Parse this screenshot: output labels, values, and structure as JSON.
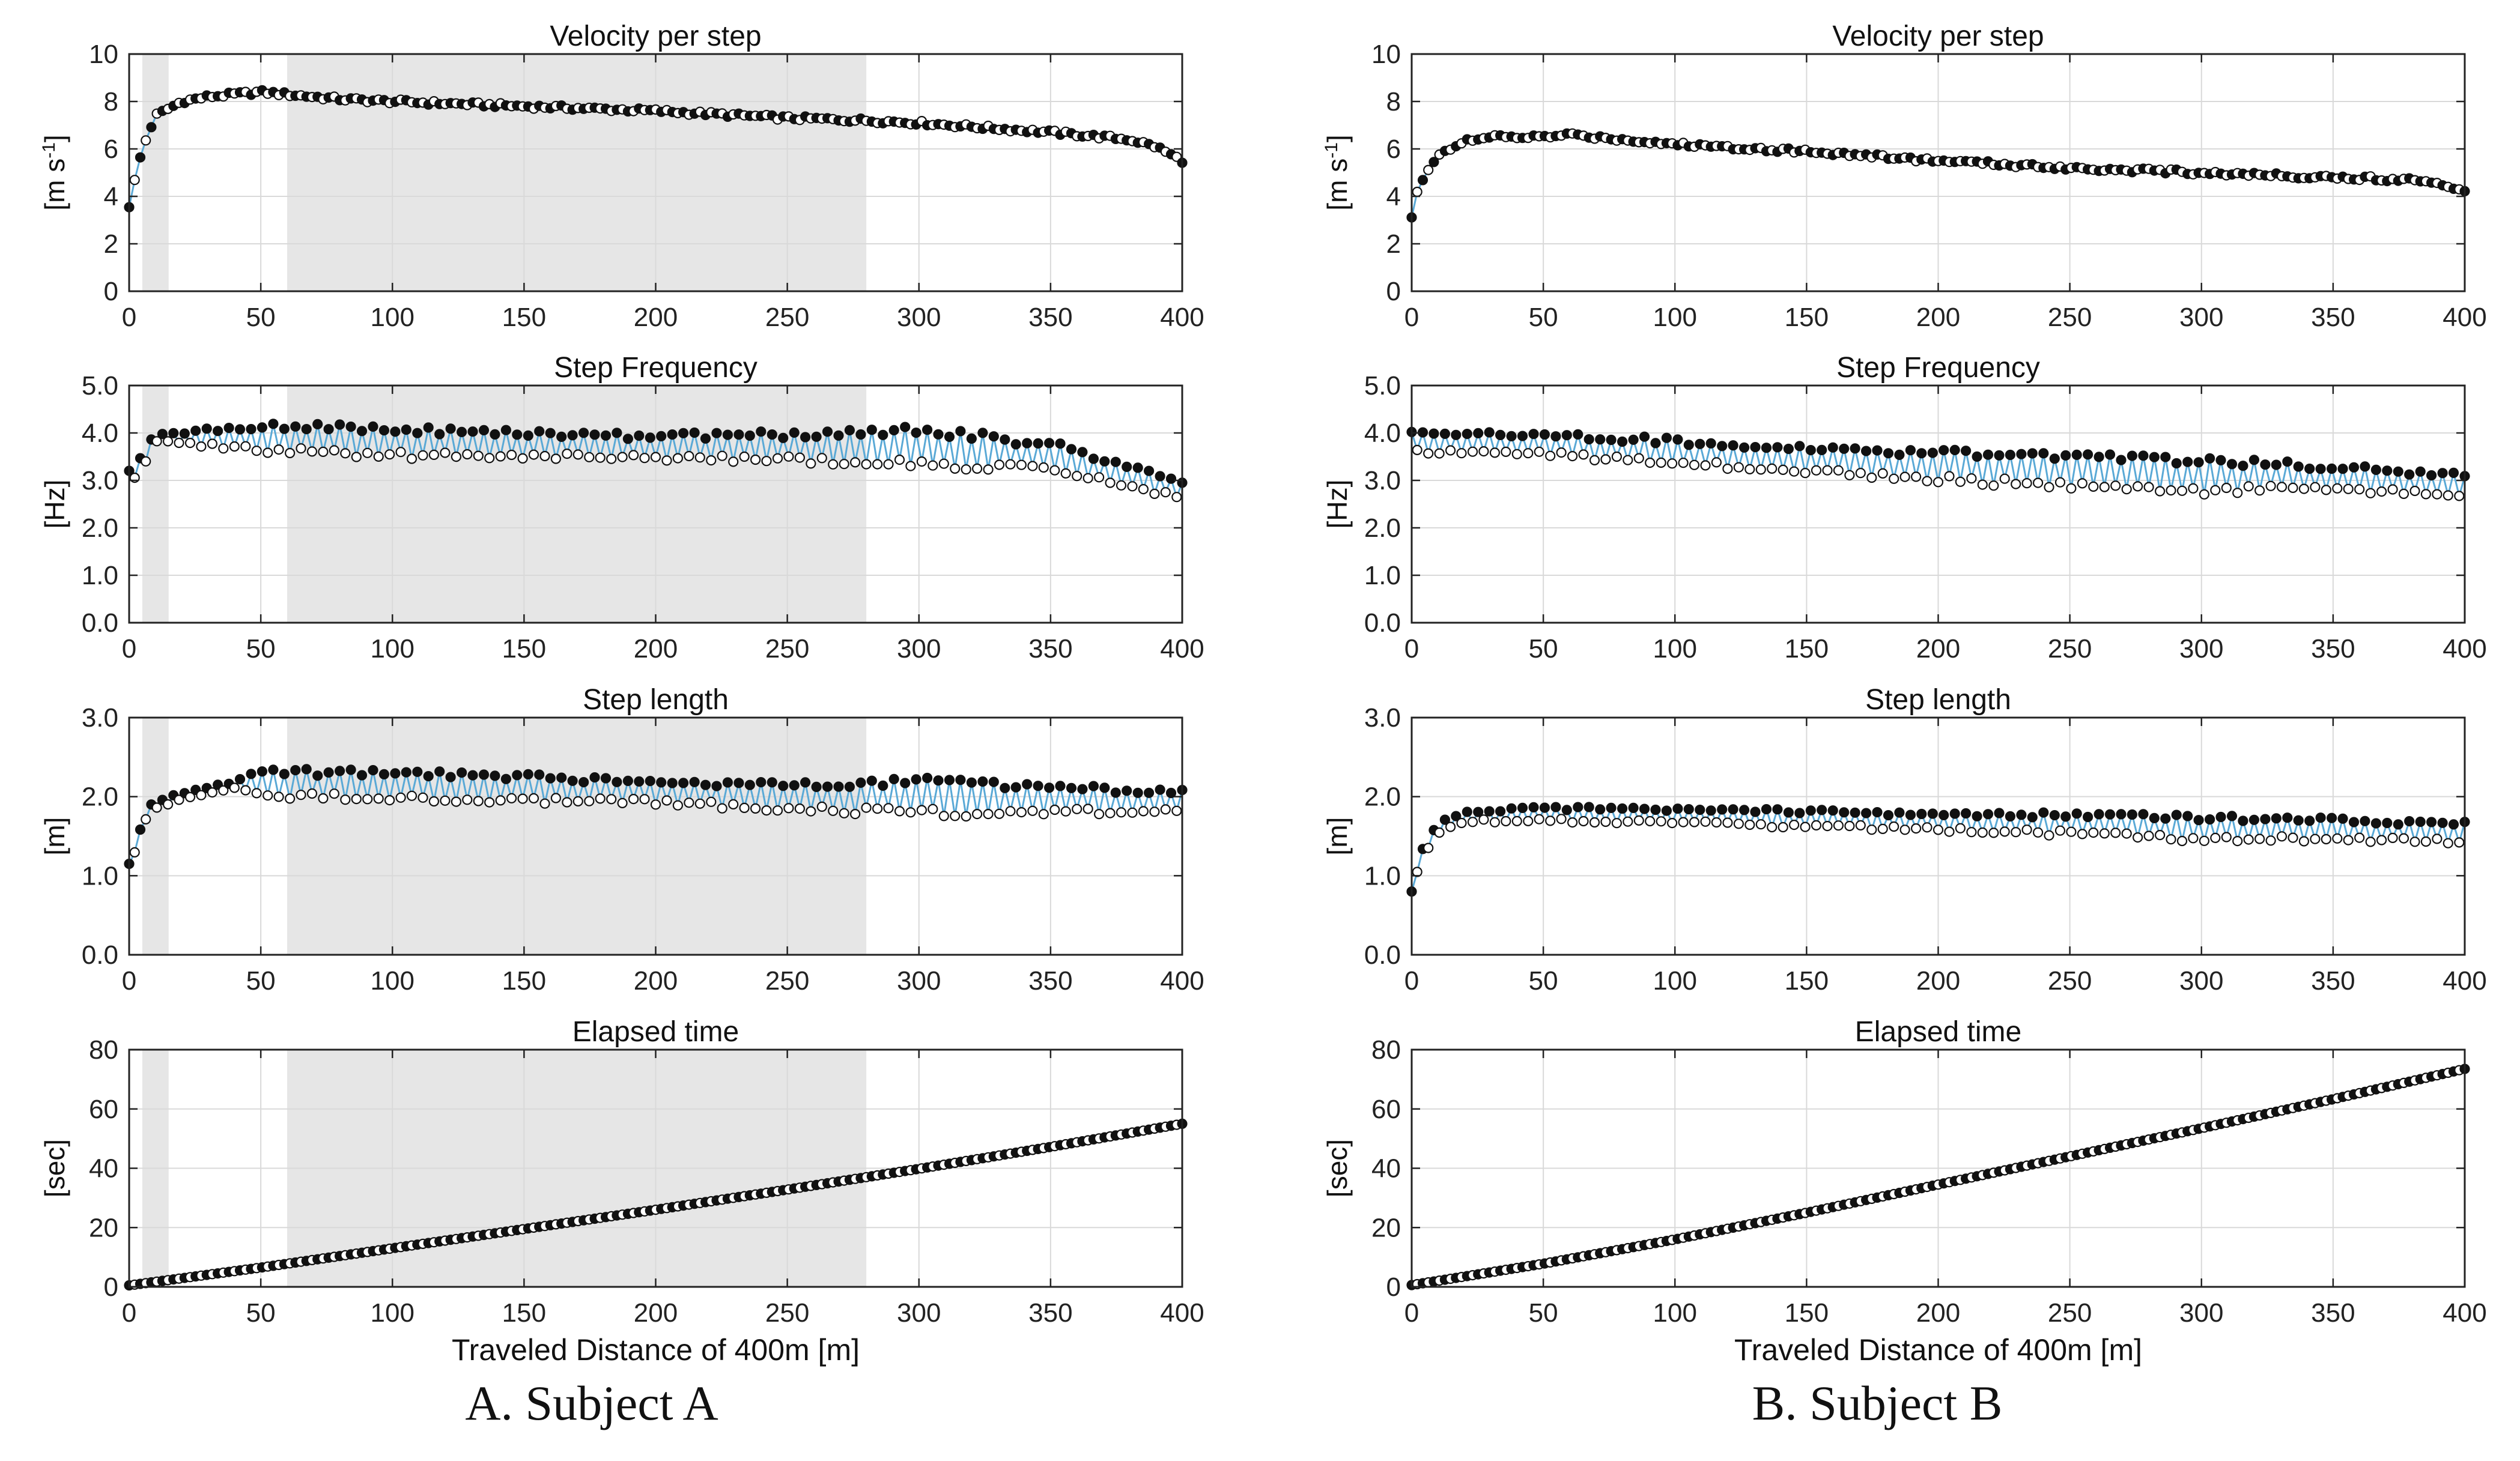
{
  "captions": {
    "a": "A. Subject A",
    "b": "B. Subject B"
  },
  "colors": {
    "connector": "#5aa9d6",
    "filled_marker": "#111111",
    "open_marker_fill": "#ffffff",
    "shade": "#e6e6e6",
    "grid": "#d9d9d9",
    "axes": "#222222"
  },
  "chart_data": [
    {
      "subject": "A",
      "type": "line",
      "title": "Velocity per step",
      "xlabel": "",
      "ylabel": "[m s-1]",
      "ylabel_main": "[m s",
      "ylabel_sup": "-1",
      "ylabel_end": "]",
      "xlim": [
        0,
        400
      ],
      "ylim": [
        0,
        10
      ],
      "xticks": [
        0,
        50,
        100,
        150,
        200,
        250,
        300,
        350,
        400
      ],
      "yticks": [
        0,
        2,
        4,
        6,
        8,
        10
      ],
      "ytick_labels": [
        "0",
        "2",
        "4",
        "6",
        "8",
        "10"
      ],
      "grid": true,
      "shaded_regions": [
        [
          5,
          15
        ],
        [
          60,
          280
        ]
      ],
      "markers": "alternating filled/open",
      "series": [
        {
          "x": [
            0,
            2,
            5,
            10,
            15,
            20,
            30,
            40,
            50,
            60,
            80,
            100,
            150,
            200,
            250,
            280,
            300,
            350,
            380,
            390,
            400
          ],
          "y": [
            3.6,
            4.6,
            6.0,
            7.4,
            7.7,
            8.0,
            8.2,
            8.3,
            8.4,
            8.3,
            8.1,
            8.0,
            7.8,
            7.6,
            7.3,
            7.2,
            7.1,
            6.7,
            6.4,
            6.1,
            5.5
          ]
        }
      ]
    },
    {
      "subject": "A",
      "type": "line",
      "title": "Step Frequency",
      "xlabel": "",
      "ylabel": "[Hz]",
      "xlim": [
        0,
        400
      ],
      "ylim": [
        0,
        5
      ],
      "xticks": [
        0,
        50,
        100,
        150,
        200,
        250,
        300,
        350,
        400
      ],
      "yticks": [
        0,
        1,
        2,
        3,
        4,
        5
      ],
      "ytick_labels": [
        "0.0",
        "1.0",
        "2.0",
        "3.0",
        "4.0",
        "5.0"
      ],
      "grid": true,
      "shaded_regions": [
        [
          5,
          15
        ],
        [
          60,
          280
        ]
      ],
      "markers": "alternating filled/open",
      "series": [
        {
          "x": [
            0,
            5,
            10,
            20,
            50,
            100,
            150,
            200,
            250,
            300,
            350,
            400
          ],
          "y": [
            3.1,
            3.4,
            3.9,
            3.9,
            3.9,
            3.8,
            3.75,
            3.7,
            3.7,
            3.7,
            3.5,
            2.8
          ],
          "alternation_amplitude": [
            0.15,
            0.2,
            0.1,
            0.15,
            0.35,
            0.35,
            0.3,
            0.3,
            0.35,
            0.45,
            0.35,
            0.2
          ]
        }
      ]
    },
    {
      "subject": "A",
      "type": "line",
      "title": "Step length",
      "xlabel": "",
      "ylabel": "[m]",
      "xlim": [
        0,
        400
      ],
      "ylim": [
        0,
        3
      ],
      "xticks": [
        0,
        50,
        100,
        150,
        200,
        250,
        300,
        350,
        400
      ],
      "yticks": [
        0,
        1,
        2,
        3
      ],
      "ytick_labels": [
        "0.0",
        "1.0",
        "2.0",
        "3.0"
      ],
      "grid": true,
      "shaded_regions": [
        [
          5,
          15
        ],
        [
          60,
          280
        ]
      ],
      "markers": "alternating filled/open",
      "series": [
        {
          "x": [
            0,
            3,
            6,
            10,
            20,
            40,
            50,
            100,
            150,
            200,
            250,
            300,
            350,
            400
          ],
          "y": [
            1.15,
            1.4,
            1.75,
            1.9,
            2.0,
            2.15,
            2.15,
            2.15,
            2.1,
            2.05,
            2.0,
            2.0,
            1.95,
            1.95
          ],
          "alternation_amplitude": [
            0,
            0.05,
            0.08,
            0.05,
            0.05,
            0.05,
            0.2,
            0.2,
            0.2,
            0.15,
            0.2,
            0.25,
            0.2,
            0.15
          ]
        }
      ]
    },
    {
      "subject": "A",
      "type": "line",
      "title": "Elapsed time",
      "xlabel": "Traveled Distance of 400m [m]",
      "ylabel": "[sec]",
      "xlim": [
        0,
        400
      ],
      "ylim": [
        0,
        80
      ],
      "xticks": [
        0,
        50,
        100,
        150,
        200,
        250,
        300,
        350,
        400
      ],
      "yticks": [
        0,
        20,
        40,
        60,
        80
      ],
      "ytick_labels": [
        "0",
        "20",
        "40",
        "60",
        "80"
      ],
      "grid": true,
      "shaded_regions": [
        [
          5,
          15
        ],
        [
          60,
          280
        ]
      ],
      "markers": "alternating filled/open",
      "series": [
        {
          "x": [
            0,
            50,
            100,
            150,
            200,
            250,
            300,
            350,
            400
          ],
          "y": [
            0.5,
            6.5,
            13,
            19.5,
            26,
            32.8,
            39.8,
            47.2,
            55
          ]
        }
      ]
    },
    {
      "subject": "B",
      "type": "line",
      "title": "Velocity per step",
      "xlabel": "",
      "ylabel": "[m s-1]",
      "ylabel_main": "[m s",
      "ylabel_sup": "-1",
      "ylabel_end": "]",
      "xlim": [
        0,
        400
      ],
      "ylim": [
        0,
        10
      ],
      "xticks": [
        0,
        50,
        100,
        150,
        200,
        250,
        300,
        350,
        400
      ],
      "yticks": [
        0,
        2,
        4,
        6,
        8,
        10
      ],
      "ytick_labels": [
        "0",
        "2",
        "4",
        "6",
        "8",
        "10"
      ],
      "grid": true,
      "shaded_regions": [],
      "markers": "alternating filled/open",
      "series": [
        {
          "x": [
            0,
            2,
            5,
            10,
            20,
            30,
            50,
            60,
            100,
            150,
            200,
            250,
            300,
            350,
            380,
            390,
            400
          ],
          "y": [
            3.1,
            4.1,
            4.9,
            5.8,
            6.3,
            6.5,
            6.5,
            6.6,
            6.2,
            5.9,
            5.5,
            5.2,
            5.0,
            4.8,
            4.7,
            4.6,
            4.2
          ]
        }
      ]
    },
    {
      "subject": "B",
      "type": "line",
      "title": "Step Frequency",
      "xlabel": "",
      "ylabel": "[Hz]",
      "xlim": [
        0,
        400
      ],
      "ylim": [
        0,
        5
      ],
      "xticks": [
        0,
        50,
        100,
        150,
        200,
        250,
        300,
        350,
        400
      ],
      "yticks": [
        0,
        1,
        2,
        3,
        4,
        5
      ],
      "ytick_labels": [
        "0.0",
        "1.0",
        "2.0",
        "3.0",
        "4.0",
        "5.0"
      ],
      "grid": true,
      "shaded_regions": [],
      "markers": "alternating filled/open",
      "series": [
        {
          "x": [
            0,
            50,
            100,
            150,
            200,
            250,
            300,
            350,
            400
          ],
          "y": [
            3.8,
            3.75,
            3.6,
            3.45,
            3.3,
            3.2,
            3.1,
            3.05,
            2.9
          ],
          "alternation_amplitude": [
            0.25,
            0.25,
            0.3,
            0.3,
            0.35,
            0.4,
            0.4,
            0.3,
            0.25
          ]
        }
      ]
    },
    {
      "subject": "B",
      "type": "line",
      "title": "Step length",
      "xlabel": "",
      "ylabel": "[m]",
      "xlim": [
        0,
        400
      ],
      "ylim": [
        0,
        3
      ],
      "xticks": [
        0,
        50,
        100,
        150,
        200,
        250,
        300,
        350,
        400
      ],
      "yticks": [
        0,
        1,
        2,
        3
      ],
      "ytick_labels": [
        "0.0",
        "1.0",
        "2.0",
        "3.0"
      ],
      "grid": true,
      "shaded_regions": [],
      "markers": "alternating filled/open",
      "series": [
        {
          "x": [
            0,
            3,
            6,
            10,
            20,
            50,
            100,
            150,
            200,
            250,
            300,
            350,
            400
          ],
          "y": [
            0.8,
            1.2,
            1.4,
            1.6,
            1.75,
            1.78,
            1.75,
            1.72,
            1.68,
            1.65,
            1.6,
            1.58,
            1.55
          ],
          "alternation_amplitude": [
            0,
            0.05,
            0.08,
            0.08,
            0.08,
            0.1,
            0.1,
            0.12,
            0.12,
            0.15,
            0.18,
            0.15,
            0.15
          ]
        }
      ]
    },
    {
      "subject": "B",
      "type": "line",
      "title": "Elapsed time",
      "xlabel": "Traveled Distance of 400m [m]",
      "ylabel": "[sec]",
      "xlim": [
        0,
        400
      ],
      "ylim": [
        0,
        80
      ],
      "xticks": [
        0,
        50,
        100,
        150,
        200,
        250,
        300,
        350,
        400
      ],
      "yticks": [
        0,
        20,
        40,
        60,
        80
      ],
      "ytick_labels": [
        "0",
        "20",
        "40",
        "60",
        "80"
      ],
      "grid": true,
      "shaded_regions": [],
      "markers": "alternating filled/open",
      "series": [
        {
          "x": [
            0,
            50,
            100,
            150,
            200,
            250,
            300,
            350,
            400
          ],
          "y": [
            0.6,
            7.8,
            16,
            25,
            34.5,
            44,
            53.5,
            63.3,
            73.5
          ]
        }
      ]
    }
  ]
}
